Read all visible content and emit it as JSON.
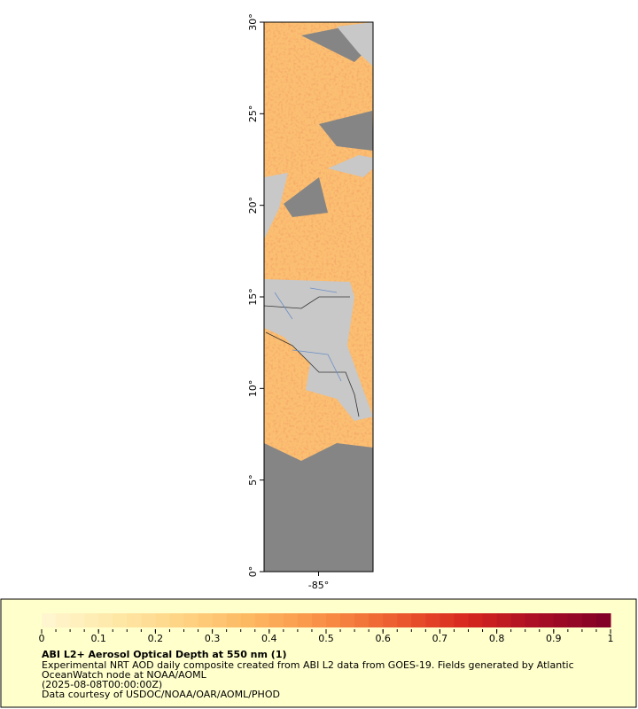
{
  "map": {
    "ylim": [
      0,
      30
    ],
    "yticks": [
      {
        "value": 0,
        "label": "0°"
      },
      {
        "value": 5,
        "label": "5°"
      },
      {
        "value": 10,
        "label": "10°"
      },
      {
        "value": 15,
        "label": "15°"
      },
      {
        "value": 20,
        "label": "20°"
      },
      {
        "value": 25,
        "label": "25°"
      },
      {
        "value": 30,
        "label": "30°"
      }
    ],
    "xlim": [
      -88,
      -82
    ],
    "xticks": [
      {
        "value": -85,
        "label": "-85°"
      }
    ]
  },
  "legend": {
    "colorbar": {
      "lim": [
        0,
        1
      ],
      "ticks": [
        0,
        0.1,
        0.2,
        0.3,
        0.4,
        0.5,
        0.6,
        0.7,
        0.8,
        0.9,
        1
      ],
      "colors": [
        "#fff6d2",
        "#fee9a8",
        "#fed383",
        "#fdb55e",
        "#f88e45",
        "#ec5b2f",
        "#d7261e",
        "#a80d25",
        "#7f0026"
      ]
    },
    "title": "ABI L2+ Aerosol Optical Depth at 550 nm (1)",
    "lines": [
      "Experimental NRT AOD daily composite created from ABI L2 data from GOES-19. Fields generated by Atlantic",
      "OceanWatch node at NOAA/AOML",
      "(2025-08-08T00:00:00Z)",
      "Data courtesy of USDOC/NOAA/OAR/AOML/PHOD"
    ]
  }
}
